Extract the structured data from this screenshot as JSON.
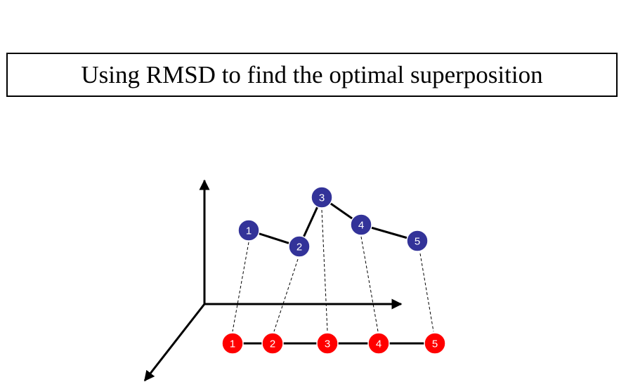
{
  "title": "Using RMSD to find the optimal superposition",
  "colors": {
    "upper_structure": "#333399",
    "lower_structure": "#ff0000",
    "line": "#000000",
    "label": "#ffffff"
  },
  "upper_nodes": [
    {
      "label": "1"
    },
    {
      "label": "2"
    },
    {
      "label": "3"
    },
    {
      "label": "4"
    },
    {
      "label": "5"
    }
  ],
  "lower_nodes": [
    {
      "label": "1"
    },
    {
      "label": "2"
    },
    {
      "label": "3"
    },
    {
      "label": "4"
    },
    {
      "label": "5"
    }
  ]
}
